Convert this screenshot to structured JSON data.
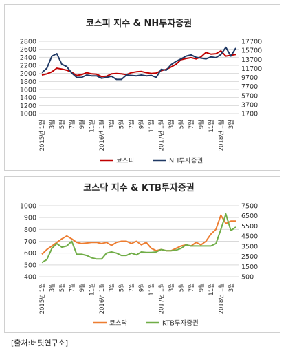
{
  "source_note": "[출처:버핏연구소]",
  "chart_data": [
    {
      "type": "line",
      "title": "코스피 지수 & NH투자증권",
      "x_ticks": [
        "2015년 1월",
        "3월",
        "5월",
        "7월",
        "9월",
        "11월",
        "2016년 1월",
        "3월",
        "5월",
        "7월",
        "9월",
        "11월",
        "2017년 1월",
        "3월",
        "5월",
        "7월",
        "9월",
        "11월",
        "2018년 1월",
        "3월"
      ],
      "left_axis": {
        "ylim": [
          1000,
          2800
        ],
        "ticks": [
          1000,
          1200,
          1400,
          1600,
          1800,
          2000,
          2200,
          2400,
          2600,
          2800
        ]
      },
      "right_axis": {
        "ylim": [
          1700,
          17700
        ],
        "ticks": [
          1700,
          3700,
          5700,
          7700,
          9700,
          11700,
          13700,
          15700,
          17700
        ]
      },
      "legend_position": "bottom",
      "series": [
        {
          "name": "코스피",
          "axis": "left",
          "color": "#c00000",
          "values": [
            1960,
            1990,
            2040,
            2130,
            2110,
            2080,
            2030,
            1950,
            1970,
            2020,
            1990,
            1980,
            1920,
            1930,
            1990,
            2000,
            1990,
            1970,
            2020,
            2040,
            2050,
            2020,
            2000,
            2010,
            2070,
            2100,
            2160,
            2230,
            2340,
            2370,
            2390,
            2360,
            2410,
            2520,
            2480,
            2490,
            2560,
            2430,
            2450,
            2470
          ]
        },
        {
          "name": "NH투자증권",
          "axis": "left",
          "color": "#1f3864",
          "values": [
            2020,
            2130,
            2430,
            2490,
            2230,
            2170,
            2010,
            1900,
            1900,
            1960,
            1940,
            1940,
            1880,
            1900,
            1930,
            1850,
            1850,
            1960,
            1950,
            1940,
            1960,
            1940,
            1950,
            1900,
            2100,
            2080,
            2220,
            2300,
            2360,
            2430,
            2460,
            2400,
            2380,
            2360,
            2410,
            2390,
            2470,
            2650,
            2430,
            2630
          ]
        }
      ]
    },
    {
      "type": "line",
      "title": "코스닥 지수 & KTB투자증권",
      "x_ticks": [
        "2015년 1월",
        "3월",
        "5월",
        "7월",
        "9월",
        "11월",
        "2016년 1월",
        "3월",
        "5월",
        "7월",
        "9월",
        "11월",
        "2017년 1월",
        "3월",
        "5월",
        "7월",
        "9월",
        "11월",
        "2018년 1월",
        "3월"
      ],
      "left_axis": {
        "ylim": [
          400,
          1000
        ],
        "ticks": [
          400,
          500,
          600,
          700,
          800,
          900,
          1000
        ]
      },
      "right_axis": {
        "ylim": [
          500,
          7500
        ],
        "ticks": [
          500,
          1500,
          2500,
          3500,
          4500,
          5500,
          6500,
          7500
        ]
      },
      "legend_position": "bottom",
      "series": [
        {
          "name": "코스닥",
          "axis": "left",
          "color": "#ed7d31",
          "values": [
            590,
            630,
            660,
            690,
            720,
            745,
            720,
            690,
            680,
            685,
            690,
            690,
            680,
            690,
            665,
            690,
            700,
            700,
            680,
            700,
            670,
            690,
            640,
            620,
            630,
            620,
            620,
            640,
            660,
            670,
            660,
            690,
            670,
            700,
            760,
            800,
            920,
            850,
            870,
            870
          ]
        },
        {
          "name": "KTB투자증권",
          "axis": "left",
          "color": "#70ad47",
          "values": [
            520,
            545,
            640,
            680,
            650,
            660,
            700,
            590,
            590,
            580,
            560,
            550,
            550,
            600,
            610,
            600,
            580,
            580,
            600,
            585,
            610,
            605,
            605,
            610,
            630,
            620,
            620,
            625,
            640,
            670,
            660,
            660,
            660,
            660,
            660,
            680,
            800,
            930,
            790,
            820
          ]
        }
      ]
    }
  ]
}
